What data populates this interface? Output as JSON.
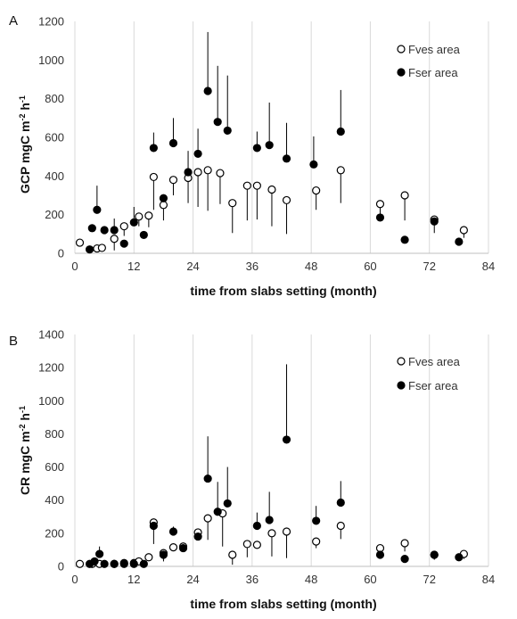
{
  "chart_data": [
    {
      "type": "scatter",
      "panel_label": "A",
      "xlabel": "time from slabs setting (month)",
      "ylabel": "GCP mgC m",
      "ylabel_sup1": "-2",
      "ylabel_mid": " h",
      "ylabel_sup2": "-1",
      "xlim": [
        0,
        84
      ],
      "ylim": [
        0,
        1200
      ],
      "xticks": [
        "0",
        "12",
        "24",
        "36",
        "48",
        "60",
        "72",
        "84"
      ],
      "yticks": [
        "0",
        "200",
        "400",
        "600",
        "800",
        "1000",
        "1200"
      ],
      "grid": "vertical",
      "legend_position": "top-right",
      "series": [
        {
          "name": "Fves area",
          "marker": "open-circle",
          "color": "#000000",
          "points": [
            {
              "x": 1,
              "y": 55,
              "err": 0
            },
            {
              "x": 4.5,
              "y": 25,
              "err": 0
            },
            {
              "x": 5.5,
              "y": 28,
              "err": 0
            },
            {
              "x": 8,
              "y": 75,
              "err": 60
            },
            {
              "x": 10,
              "y": 140,
              "err": 50
            },
            {
              "x": 13,
              "y": 190,
              "err": 50
            },
            {
              "x": 15,
              "y": 195,
              "err": 60
            },
            {
              "x": 16,
              "y": 395,
              "err": 170
            },
            {
              "x": 18,
              "y": 250,
              "err": 80
            },
            {
              "x": 20,
              "y": 380,
              "err": 80
            },
            {
              "x": 23,
              "y": 390,
              "err": 130
            },
            {
              "x": 25,
              "y": 420,
              "err": 180
            },
            {
              "x": 27,
              "y": 430,
              "err": 210
            },
            {
              "x": 29.5,
              "y": 415,
              "err": 160
            },
            {
              "x": 32,
              "y": 260,
              "err": 155
            },
            {
              "x": 35,
              "y": 350,
              "err": 180
            },
            {
              "x": 37,
              "y": 350,
              "err": 175
            },
            {
              "x": 40,
              "y": 330,
              "err": 190
            },
            {
              "x": 43,
              "y": 275,
              "err": 175
            },
            {
              "x": 49,
              "y": 325,
              "err": 100
            },
            {
              "x": 54,
              "y": 430,
              "err": 170
            },
            {
              "x": 62,
              "y": 255,
              "err": 60
            },
            {
              "x": 67,
              "y": 300,
              "err": 130
            },
            {
              "x": 73,
              "y": 175,
              "err": 70
            },
            {
              "x": 79,
              "y": 120,
              "err": 40
            }
          ]
        },
        {
          "name": "Fser area",
          "marker": "filled-circle",
          "color": "#000000",
          "points": [
            {
              "x": 3,
              "y": 20,
              "err": 0
            },
            {
              "x": 3.5,
              "y": 130,
              "err": 0
            },
            {
              "x": 4.5,
              "y": 225,
              "err": 125
            },
            {
              "x": 6,
              "y": 120,
              "err": 0
            },
            {
              "x": 8,
              "y": 120,
              "err": 60
            },
            {
              "x": 10,
              "y": 50,
              "err": 0
            },
            {
              "x": 12,
              "y": 160,
              "err": 80
            },
            {
              "x": 14,
              "y": 95,
              "err": 0
            },
            {
              "x": 16,
              "y": 545,
              "err": 80
            },
            {
              "x": 18,
              "y": 285,
              "err": 0
            },
            {
              "x": 20,
              "y": 570,
              "err": 130
            },
            {
              "x": 23,
              "y": 420,
              "err": 110
            },
            {
              "x": 25,
              "y": 515,
              "err": 130
            },
            {
              "x": 27,
              "y": 840,
              "err": 305
            },
            {
              "x": 29,
              "y": 680,
              "err": 290
            },
            {
              "x": 31,
              "y": 635,
              "err": 285
            },
            {
              "x": 37,
              "y": 545,
              "err": 85
            },
            {
              "x": 39.5,
              "y": 560,
              "err": 220
            },
            {
              "x": 43,
              "y": 490,
              "err": 185
            },
            {
              "x": 48.5,
              "y": 460,
              "err": 145
            },
            {
              "x": 54,
              "y": 630,
              "err": 215
            },
            {
              "x": 62,
              "y": 185,
              "err": 0
            },
            {
              "x": 67,
              "y": 70,
              "err": 0
            },
            {
              "x": 73,
              "y": 165,
              "err": 0
            },
            {
              "x": 78,
              "y": 60,
              "err": 0
            }
          ]
        }
      ]
    },
    {
      "type": "scatter",
      "panel_label": "B",
      "xlabel": "time from slabs setting (month)",
      "ylabel": "CR mgC m",
      "ylabel_sup1": "-2",
      "ylabel_mid": " h",
      "ylabel_sup2": "-1",
      "xlim": [
        0,
        84
      ],
      "ylim": [
        0,
        1400
      ],
      "xticks": [
        "0",
        "12",
        "24",
        "36",
        "48",
        "60",
        "72",
        "84"
      ],
      "yticks": [
        "0",
        "200",
        "400",
        "600",
        "800",
        "1000",
        "1200",
        "1400"
      ],
      "grid": "vertical",
      "legend_position": "top-right",
      "series": [
        {
          "name": "Fves area",
          "marker": "open-circle",
          "color": "#000000",
          "points": [
            {
              "x": 1,
              "y": 15,
              "err": 0
            },
            {
              "x": 3.5,
              "y": 15,
              "err": 0
            },
            {
              "x": 5,
              "y": 15,
              "err": 0
            },
            {
              "x": 8,
              "y": 15,
              "err": 0
            },
            {
              "x": 10,
              "y": 20,
              "err": 0
            },
            {
              "x": 12,
              "y": 20,
              "err": 0
            },
            {
              "x": 13,
              "y": 30,
              "err": 0
            },
            {
              "x": 15,
              "y": 55,
              "err": 0
            },
            {
              "x": 16,
              "y": 265,
              "err": 130
            },
            {
              "x": 18,
              "y": 80,
              "err": 50
            },
            {
              "x": 20,
              "y": 115,
              "err": 0
            },
            {
              "x": 22,
              "y": 120,
              "err": 0
            },
            {
              "x": 25,
              "y": 205,
              "err": 40
            },
            {
              "x": 27,
              "y": 290,
              "err": 130
            },
            {
              "x": 30,
              "y": 320,
              "err": 200
            },
            {
              "x": 32,
              "y": 70,
              "err": 60
            },
            {
              "x": 35,
              "y": 135,
              "err": 80
            },
            {
              "x": 37,
              "y": 130,
              "err": 0
            },
            {
              "x": 40,
              "y": 200,
              "err": 140
            },
            {
              "x": 43,
              "y": 210,
              "err": 160
            },
            {
              "x": 49,
              "y": 150,
              "err": 40
            },
            {
              "x": 54,
              "y": 245,
              "err": 80
            },
            {
              "x": 62,
              "y": 110,
              "err": 40
            },
            {
              "x": 67,
              "y": 140,
              "err": 50
            },
            {
              "x": 73,
              "y": 70,
              "err": 30
            },
            {
              "x": 79,
              "y": 75,
              "err": 30
            }
          ]
        },
        {
          "name": "Fser area",
          "marker": "filled-circle",
          "color": "#000000",
          "points": [
            {
              "x": 3,
              "y": 15,
              "err": 0
            },
            {
              "x": 4,
              "y": 30,
              "err": 0
            },
            {
              "x": 5,
              "y": 75,
              "err": 45
            },
            {
              "x": 6,
              "y": 15,
              "err": 0
            },
            {
              "x": 8,
              "y": 15,
              "err": 0
            },
            {
              "x": 10,
              "y": 15,
              "err": 0
            },
            {
              "x": 12,
              "y": 15,
              "err": 0
            },
            {
              "x": 14,
              "y": 15,
              "err": 0
            },
            {
              "x": 16,
              "y": 245,
              "err": 0
            },
            {
              "x": 18,
              "y": 70,
              "err": 0
            },
            {
              "x": 20,
              "y": 210,
              "err": 30
            },
            {
              "x": 22,
              "y": 110,
              "err": 0
            },
            {
              "x": 25,
              "y": 180,
              "err": 0
            },
            {
              "x": 27,
              "y": 530,
              "err": 255
            },
            {
              "x": 29,
              "y": 330,
              "err": 180
            },
            {
              "x": 31,
              "y": 380,
              "err": 220
            },
            {
              "x": 37,
              "y": 245,
              "err": 80
            },
            {
              "x": 39.5,
              "y": 280,
              "err": 170
            },
            {
              "x": 43,
              "y": 765,
              "err": 455
            },
            {
              "x": 49,
              "y": 275,
              "err": 90
            },
            {
              "x": 54,
              "y": 385,
              "err": 130
            },
            {
              "x": 62,
              "y": 70,
              "err": 0
            },
            {
              "x": 67,
              "y": 45,
              "err": 0
            },
            {
              "x": 73,
              "y": 70,
              "err": 0
            },
            {
              "x": 78,
              "y": 55,
              "err": 0
            }
          ]
        }
      ]
    }
  ]
}
